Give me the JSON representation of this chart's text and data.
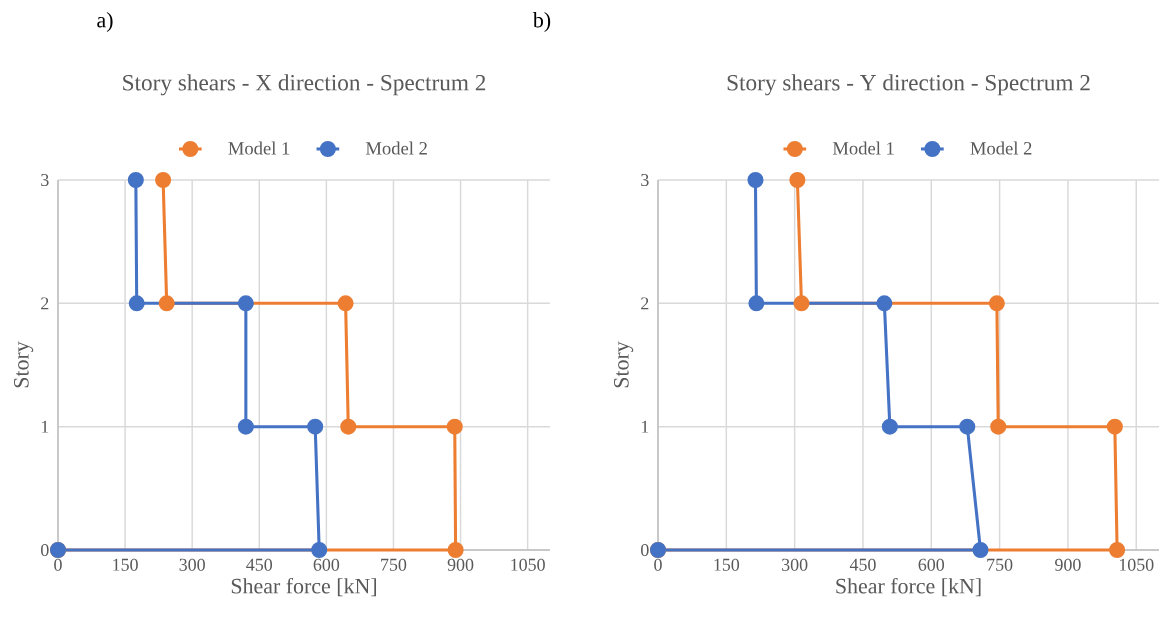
{
  "chart_data": [
    {
      "type": "line",
      "title": "Story shears - X direction - Spectrum 2",
      "xlabel": "Shear force [kN]",
      "ylabel": "Story",
      "annotations": [
        "a)"
      ],
      "series": [
        {
          "name": "Model 1",
          "color": "#ed7d31",
          "x": [
            0,
            889,
            887,
            649,
            643,
            243,
            235
          ],
          "values": [
            0,
            0,
            1,
            1,
            2,
            2,
            3
          ]
        },
        {
          "name": "Model 2",
          "color": "#4472c4",
          "x": [
            0,
            584,
            575,
            420,
            420,
            176,
            174
          ],
          "values": [
            0,
            0,
            1,
            1,
            2,
            2,
            3
          ]
        }
      ],
      "xlim": [
        0,
        1100
      ],
      "xticks": [
        0,
        150,
        300,
        450,
        600,
        750,
        900,
        1050
      ],
      "ylim": [
        0,
        3
      ],
      "yticks": [
        0,
        1,
        2,
        3
      ],
      "grid": true,
      "legend": "top",
      "marker": "circle",
      "line_style": "solid"
    },
    {
      "type": "line",
      "title": "Story shears - Y direction - Spectrum 2",
      "xlabel": "Shear force [kN]",
      "ylabel": "Story",
      "annotations": [
        "b)"
      ],
      "series": [
        {
          "name": "Model 1",
          "color": "#ed7d31",
          "x": [
            0,
            1008,
            1003,
            747,
            744,
            315,
            306
          ],
          "values": [
            0,
            0,
            1,
            1,
            2,
            2,
            3
          ]
        },
        {
          "name": "Model 2",
          "color": "#4472c4",
          "x": [
            0,
            708,
            679,
            509,
            497,
            216,
            214
          ],
          "values": [
            0,
            0,
            1,
            1,
            2,
            2,
            3
          ]
        }
      ],
      "xlim": [
        0,
        1100
      ],
      "xticks": [
        0,
        150,
        300,
        450,
        600,
        750,
        900,
        1050
      ],
      "ylim": [
        0,
        3
      ],
      "yticks": [
        0,
        1,
        2,
        3
      ],
      "grid": true,
      "legend": "top",
      "marker": "circle",
      "line_style": "solid"
    }
  ]
}
